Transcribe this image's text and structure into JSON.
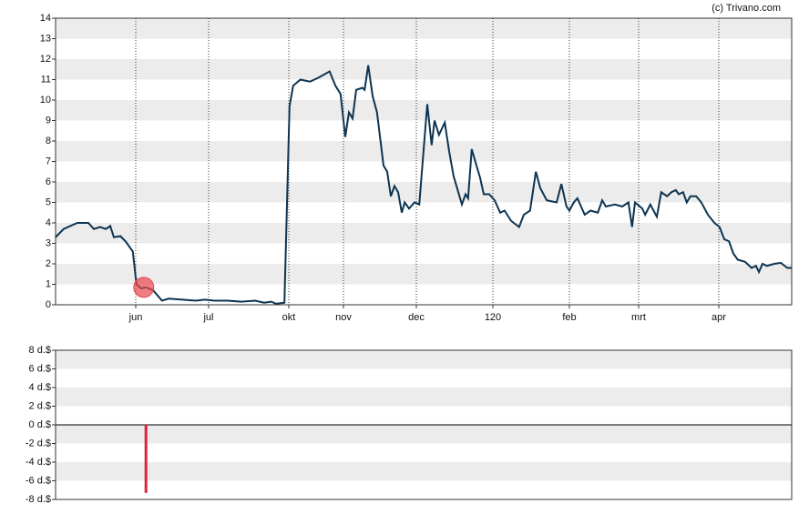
{
  "source": "(c) Trivano.com",
  "chart_data": [
    {
      "type": "line",
      "color": "#0d3451",
      "grid": true,
      "x": [
        0,
        2.2,
        6,
        9,
        10.5,
        12.2,
        13.8,
        15,
        16,
        17.8,
        19.2,
        21.2,
        22.2,
        23.5,
        24.8,
        26.8,
        29.2,
        31,
        34.8,
        38.5,
        41,
        43.5,
        47.2,
        51,
        54.8,
        57.2,
        59.2,
        60.5,
        62.8,
        64.2,
        65.2,
        67.2,
        69.8,
        72.2,
        75.2,
        76.8,
        78.2,
        79.5,
        80.5,
        81.5,
        82.5,
        84.2,
        84.8,
        85.8,
        87,
        88.2,
        90,
        91,
        92,
        93,
        94,
        95,
        95.8,
        97,
        98.5,
        99.8,
        102,
        103.2,
        104,
        105.2,
        106.8,
        108,
        109.2,
        111.5,
        112.5,
        113.2,
        114.2,
        115.5,
        116.5,
        117.5,
        119,
        120.5,
        122,
        123.2,
        125,
        127.2,
        128.5,
        130.2,
        131.8,
        133,
        134.8,
        137.5,
        138.8,
        140.2,
        141,
        142.2,
        143.2,
        144.2,
        145.2,
        146.8,
        148.8,
        150,
        151,
        153.5,
        155.5,
        157.2,
        158.2,
        159,
        161,
        161.8,
        163.2,
        165,
        166.2,
        167.8,
        169,
        170.2,
        171,
        172.2,
        173.2,
        174.2,
        175.8,
        177.2,
        179,
        180.8,
        182.2,
        183.5,
        184.8,
        186,
        187.2,
        189.2,
        191,
        192.2,
        193,
        194,
        195.2,
        197.2,
        199,
        200.8,
        202
      ],
      "values": [
        3.3,
        3.7,
        4.0,
        4.0,
        3.7,
        3.8,
        3.7,
        3.85,
        3.3,
        3.35,
        3.1,
        2.6,
        1.0,
        0.8,
        0.85,
        0.7,
        0.2,
        0.3,
        0.25,
        0.2,
        0.25,
        0.2,
        0.2,
        0.15,
        0.2,
        0.1,
        0.15,
        0.05,
        0.1,
        9.7,
        10.7,
        11.0,
        10.9,
        11.1,
        11.4,
        10.7,
        10.3,
        8.2,
        9.4,
        9.1,
        10.5,
        10.6,
        10.5,
        11.7,
        10.2,
        9.4,
        6.8,
        6.5,
        5.3,
        5.8,
        5.5,
        4.5,
        5.0,
        4.7,
        5.0,
        4.9,
        9.8,
        7.8,
        9.0,
        8.3,
        8.9,
        7.5,
        6.3,
        4.9,
        5.4,
        5.2,
        7.6,
        6.8,
        6.2,
        5.4,
        5.4,
        5.1,
        4.5,
        4.6,
        4.1,
        3.8,
        4.4,
        4.6,
        6.5,
        5.7,
        5.1,
        5.0,
        5.9,
        4.8,
        4.6,
        5.0,
        5.2,
        4.8,
        4.4,
        4.6,
        4.5,
        5.1,
        4.8,
        4.9,
        4.8,
        5.0,
        3.8,
        5.0,
        4.7,
        4.4,
        4.9,
        4.3,
        5.5,
        5.3,
        5.5,
        5.6,
        5.4,
        5.5,
        5.0,
        5.3,
        5.3,
        5.0,
        4.4,
        4.0,
        3.8,
        3.2,
        3.1,
        2.5,
        2.2,
        2.1,
        1.8,
        1.9,
        1.6,
        2.0,
        1.9,
        2.0,
        2.05,
        1.8,
        1.8
      ],
      "marker": {
        "x": 24.2,
        "y": 0.85,
        "color": "#e8474f"
      },
      "xlim": [
        0,
        202
      ],
      "xticks": [
        {
          "value": 22,
          "label": "jun"
        },
        {
          "value": 42,
          "label": "jul"
        },
        {
          "value": 64,
          "label": "okt"
        },
        {
          "value": 79,
          "label": "nov"
        },
        {
          "value": 99,
          "label": "dec"
        },
        120,
        {
          "value": 141,
          "label": "feb"
        },
        {
          "value": 160,
          "label": "mrt"
        },
        {
          "value": 182,
          "label": "apr"
        }
      ],
      "ylim": [
        0,
        14
      ],
      "yticks": [
        0,
        1,
        2,
        3,
        4,
        5,
        6,
        7,
        8,
        9,
        10,
        11,
        12,
        13,
        14
      ]
    },
    {
      "type": "bar",
      "color": "#e0213a",
      "grid": true,
      "x": [
        24.8
      ],
      "values": [
        -7.3
      ],
      "xlim": [
        0,
        202
      ],
      "ylim": [
        -8,
        8
      ],
      "yticks": [
        {
          "value": -8,
          "label": "-8 d.$"
        },
        {
          "value": -6,
          "label": "-6 d.$"
        },
        {
          "value": -4,
          "label": "-4 d.$"
        },
        {
          "value": -2,
          "label": "-2 d.$"
        },
        {
          "value": 0,
          "label": "0 d.$"
        },
        {
          "value": 2,
          "label": "2 d.$"
        },
        {
          "value": 4,
          "label": "4 d.$"
        },
        {
          "value": 6,
          "label": "6 d.$"
        },
        {
          "value": 8,
          "label": "8 d.$"
        }
      ]
    }
  ]
}
